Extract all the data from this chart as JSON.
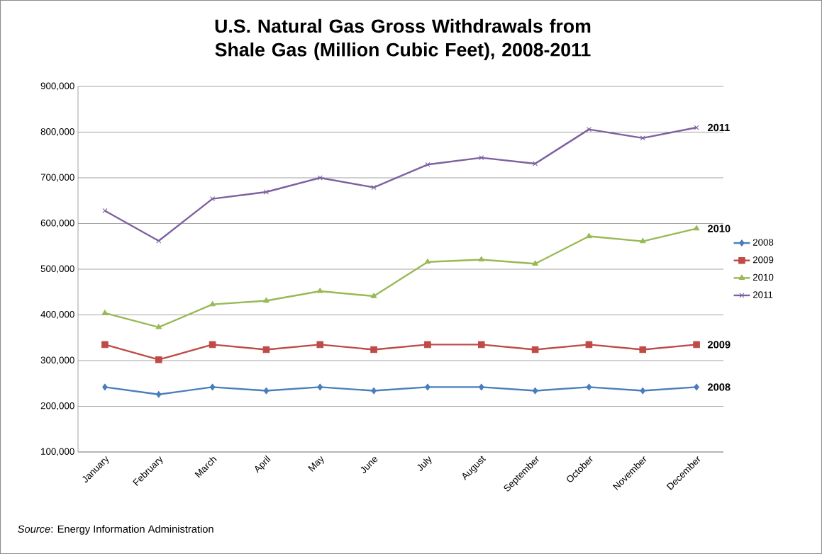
{
  "chart_data": {
    "type": "line",
    "title": "U.S. Natural Gas Gross Withdrawals from Shale Gas (Million Cubic Feet), 2008-2011",
    "categories": [
      "January",
      "February",
      "March",
      "April",
      "May",
      "June",
      "July",
      "August",
      "September",
      "October",
      "November",
      "December"
    ],
    "series": [
      {
        "name": "2008",
        "color": "#4a7ebb",
        "marker": "diamond",
        "values": [
          242000,
          226000,
          242000,
          234000,
          242000,
          234000,
          242000,
          242000,
          234000,
          242000,
          234000,
          242000
        ]
      },
      {
        "name": "2009",
        "color": "#be4b48",
        "marker": "square",
        "values": [
          335000,
          302000,
          335000,
          324000,
          335000,
          324000,
          335000,
          335000,
          324000,
          335000,
          324000,
          335000
        ]
      },
      {
        "name": "2010",
        "color": "#98b954",
        "marker": "triangle",
        "values": [
          404000,
          373000,
          423000,
          431000,
          452000,
          441000,
          516000,
          521000,
          512000,
          572000,
          561000,
          589000
        ]
      },
      {
        "name": "2011",
        "color": "#7d60a0",
        "marker": "cross",
        "values": [
          628000,
          562000,
          654000,
          669000,
          700000,
          679000,
          729000,
          744000,
          731000,
          806000,
          787000,
          810000
        ]
      }
    ],
    "ylim": [
      100000,
      900000
    ],
    "yticks": [
      {
        "value": 100000,
        "label": "100,000"
      },
      {
        "value": 200000,
        "label": "200,000"
      },
      {
        "value": 300000,
        "label": "300,000"
      },
      {
        "value": 400000,
        "label": "400,000"
      },
      {
        "value": 500000,
        "label": "500,000"
      },
      {
        "value": 600000,
        "label": "600,000"
      },
      {
        "value": 700000,
        "label": "700,000"
      },
      {
        "value": 800000,
        "label": "800,000"
      },
      {
        "value": 900000,
        "label": "900,000"
      }
    ],
    "grid": "y",
    "legend": "right",
    "line_style": "solid",
    "annotations": [
      "*Source*: Energy Information Administration"
    ]
  }
}
